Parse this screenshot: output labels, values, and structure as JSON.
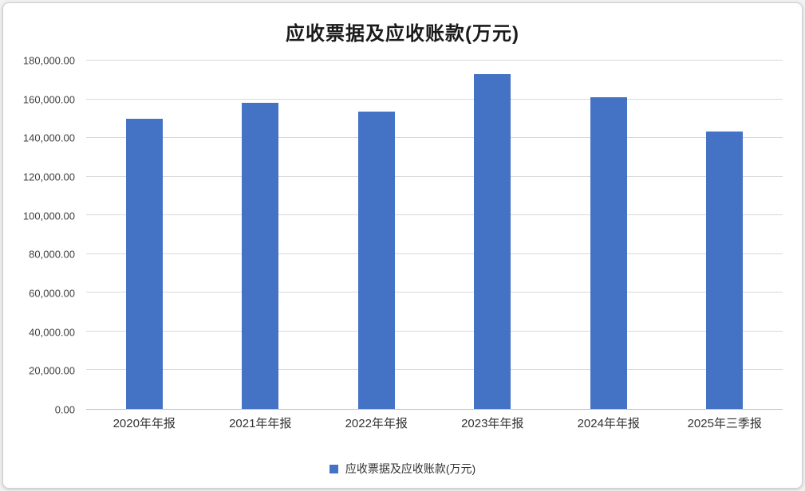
{
  "chart_data": {
    "type": "bar",
    "title": "应收票据及应收账款(万元)",
    "categories": [
      "2020年年报",
      "2021年年报",
      "2022年年报",
      "2023年年报",
      "2024年年报",
      "2025年三季报"
    ],
    "values": [
      150000,
      158000,
      153500,
      173000,
      161000,
      143500
    ],
    "ylim": [
      0,
      180000
    ],
    "ytick_step": 20000,
    "ytick_labels": [
      "0.00",
      "20,000.00",
      "40,000.00",
      "60,000.00",
      "80,000.00",
      "100,000.00",
      "120,000.00",
      "140,000.00",
      "160,000.00",
      "180,000.00"
    ],
    "xlabel": "",
    "ylabel": "",
    "grid": true,
    "legend": {
      "position": "bottom",
      "label": "应收票据及应收账款(万元)"
    },
    "bar_color": "#4472C4"
  },
  "colors": {
    "bar": "#4472C4",
    "gridline": "#d9d9d9",
    "axis_line": "#bfbfbf",
    "tick_text": "#404040",
    "title_text": "#1a1a1a"
  }
}
